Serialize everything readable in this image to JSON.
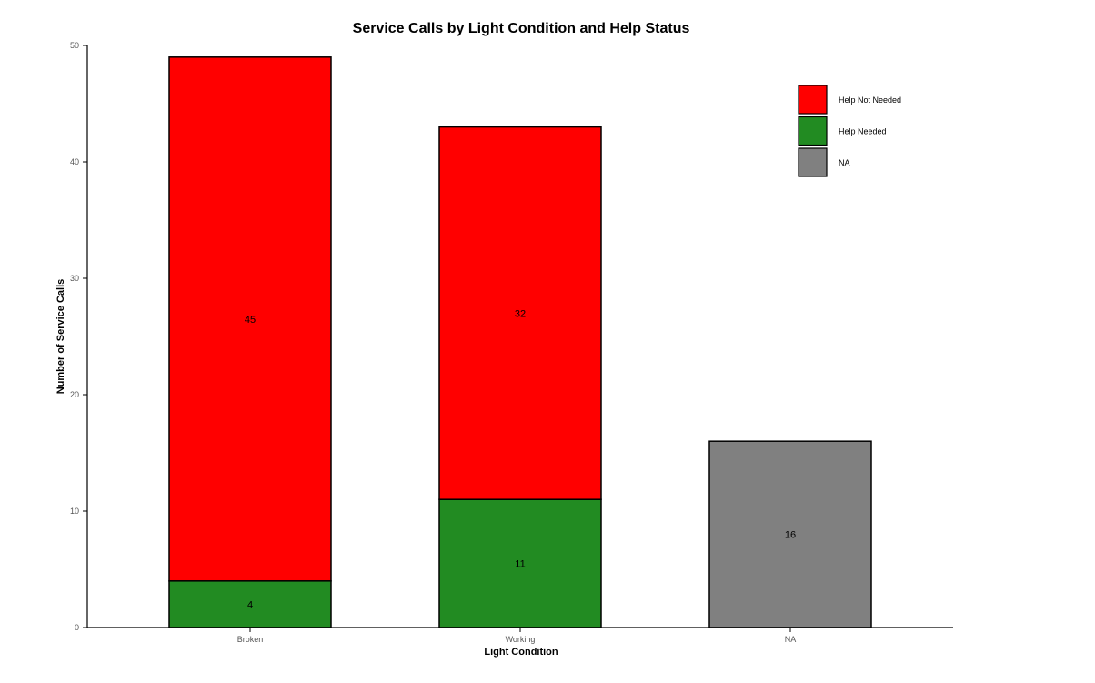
{
  "chart_data": {
    "type": "bar",
    "stacked": true,
    "title": "Service Calls by Light Condition and Help Status",
    "xlabel": "Light Condition",
    "ylabel": "Number of Service Calls",
    "categories": [
      "Broken",
      "Working",
      "NA"
    ],
    "ylim": [
      0,
      50
    ],
    "yticks": [
      "0",
      "10",
      "20",
      "30",
      "40",
      "50"
    ],
    "series": [
      {
        "name": "Help Needed",
        "color": "#228B22",
        "values": [
          4,
          11,
          0
        ]
      },
      {
        "name": "Help Not Needed",
        "color": "#FF0000",
        "values": [
          45,
          32,
          0
        ]
      },
      {
        "name": "NA",
        "color": "#808080",
        "values": [
          0,
          0,
          16
        ]
      }
    ],
    "legend": {
      "position": "top-right",
      "order": [
        "Help Not Needed",
        "Help Needed",
        "NA"
      ]
    },
    "grid": false
  }
}
